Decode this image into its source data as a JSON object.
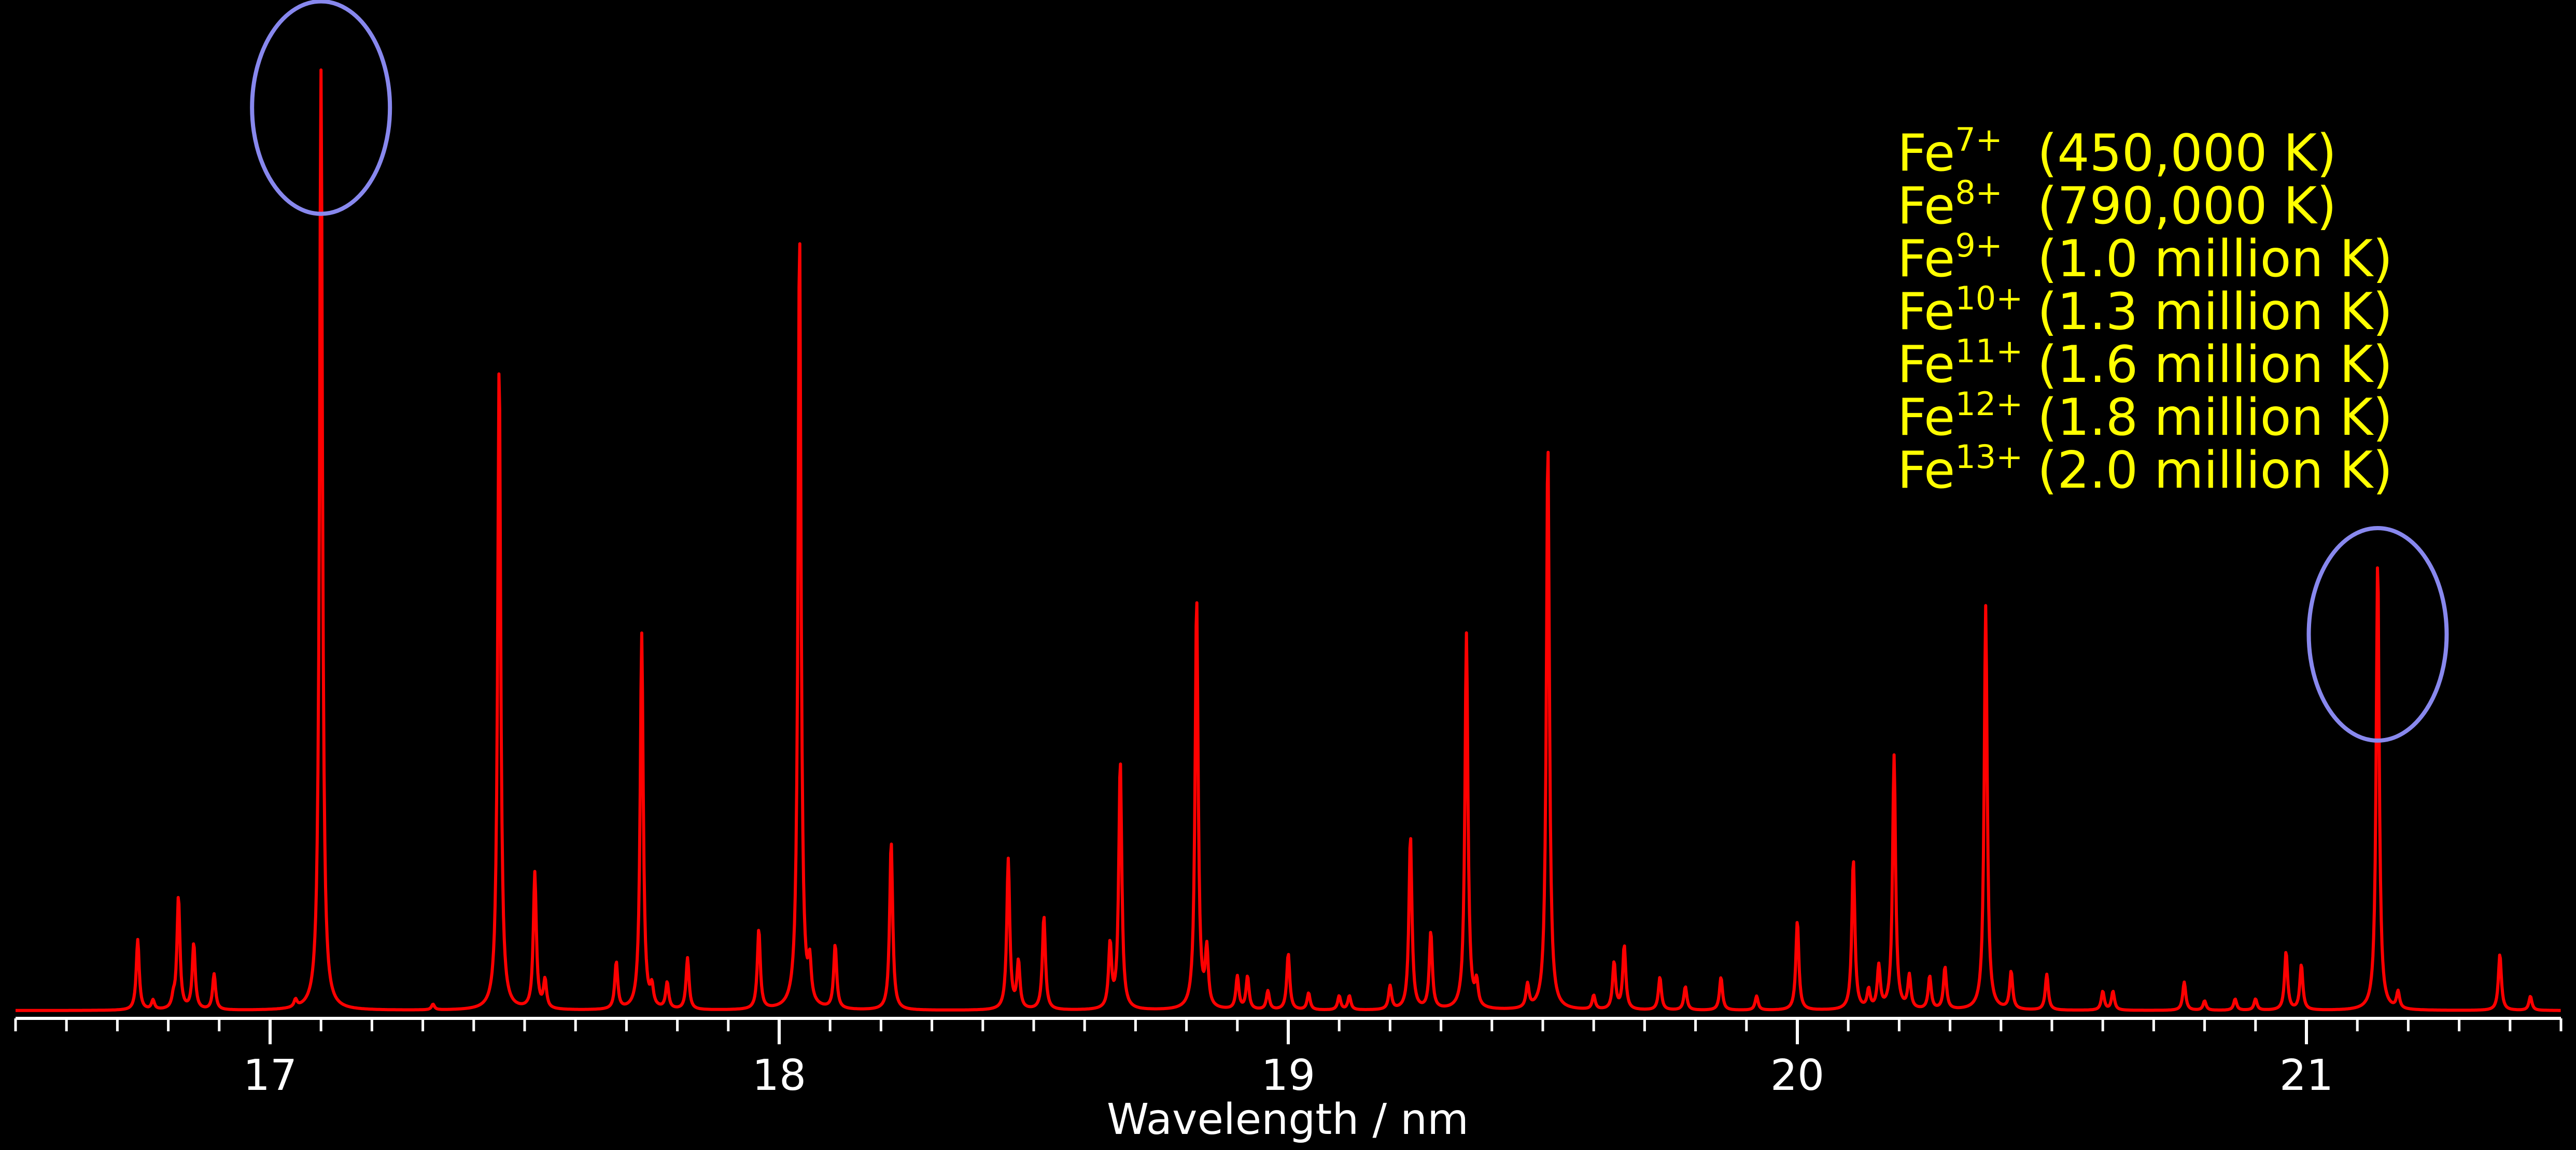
{
  "chart_data": {
    "type": "line",
    "xlabel": "Wavelength / nm",
    "ylabel": "",
    "xlim": [
      16.5,
      21.5
    ],
    "ylim": [
      0,
      100
    ],
    "xticks": [
      17,
      18,
      19,
      20,
      21
    ],
    "grid": false,
    "legend_position": "top-right",
    "colors": {
      "background": "#000000",
      "line": "#ff0000",
      "highlight": "#8888ee",
      "legend_text": "#ffff00",
      "axis": "#ffffff"
    },
    "peaks": [
      {
        "x": 16.74,
        "y": 7.5
      },
      {
        "x": 16.77,
        "y": 1.0
      },
      {
        "x": 16.81,
        "y": 1.0
      },
      {
        "x": 16.82,
        "y": 12.0
      },
      {
        "x": 16.85,
        "y": 7.0
      },
      {
        "x": 16.89,
        "y": 3.8
      },
      {
        "x": 17.05,
        "y": 0.8
      },
      {
        "x": 17.1,
        "y": 100
      },
      {
        "x": 17.32,
        "y": 0.6
      },
      {
        "x": 17.45,
        "y": 69
      },
      {
        "x": 17.52,
        "y": 14.5
      },
      {
        "x": 17.54,
        "y": 3.0
      },
      {
        "x": 17.68,
        "y": 5.0
      },
      {
        "x": 17.73,
        "y": 40
      },
      {
        "x": 17.75,
        "y": 2.0
      },
      {
        "x": 17.78,
        "y": 2.8
      },
      {
        "x": 17.82,
        "y": 5.5
      },
      {
        "x": 17.96,
        "y": 8.5
      },
      {
        "x": 18.04,
        "y": 83
      },
      {
        "x": 18.06,
        "y": 4.0
      },
      {
        "x": 18.11,
        "y": 6.8
      },
      {
        "x": 18.22,
        "y": 18
      },
      {
        "x": 18.45,
        "y": 16
      },
      {
        "x": 18.47,
        "y": 5.0
      },
      {
        "x": 18.52,
        "y": 10
      },
      {
        "x": 18.65,
        "y": 6.8
      },
      {
        "x": 18.67,
        "y": 26.5
      },
      {
        "x": 18.82,
        "y": 44
      },
      {
        "x": 18.84,
        "y": 6.0
      },
      {
        "x": 18.9,
        "y": 3.5
      },
      {
        "x": 18.92,
        "y": 3.5
      },
      {
        "x": 18.96,
        "y": 2.0
      },
      {
        "x": 19.0,
        "y": 6.0
      },
      {
        "x": 19.04,
        "y": 1.8
      },
      {
        "x": 19.1,
        "y": 1.5
      },
      {
        "x": 19.12,
        "y": 1.5
      },
      {
        "x": 19.2,
        "y": 2.5
      },
      {
        "x": 19.24,
        "y": 18.5
      },
      {
        "x": 19.28,
        "y": 8.2
      },
      {
        "x": 19.35,
        "y": 40
      },
      {
        "x": 19.37,
        "y": 2.5
      },
      {
        "x": 19.47,
        "y": 2.5
      },
      {
        "x": 19.51,
        "y": 60.5
      },
      {
        "x": 19.6,
        "y": 1.5
      },
      {
        "x": 19.64,
        "y": 5.0
      },
      {
        "x": 19.66,
        "y": 6.8
      },
      {
        "x": 19.73,
        "y": 3.5
      },
      {
        "x": 19.78,
        "y": 2.5
      },
      {
        "x": 19.85,
        "y": 3.5
      },
      {
        "x": 19.92,
        "y": 1.5
      },
      {
        "x": 20.0,
        "y": 9.5
      },
      {
        "x": 20.11,
        "y": 16
      },
      {
        "x": 20.14,
        "y": 2.0
      },
      {
        "x": 20.16,
        "y": 4.5
      },
      {
        "x": 20.19,
        "y": 27
      },
      {
        "x": 20.22,
        "y": 3.5
      },
      {
        "x": 20.26,
        "y": 3.5
      },
      {
        "x": 20.29,
        "y": 4.5
      },
      {
        "x": 20.37,
        "y": 43
      },
      {
        "x": 20.42,
        "y": 4.0
      },
      {
        "x": 20.49,
        "y": 3.8
      },
      {
        "x": 20.6,
        "y": 2.0
      },
      {
        "x": 20.62,
        "y": 2.0
      },
      {
        "x": 20.76,
        "y": 3.0
      },
      {
        "x": 20.8,
        "y": 1.0
      },
      {
        "x": 20.86,
        "y": 1.2
      },
      {
        "x": 20.9,
        "y": 1.2
      },
      {
        "x": 20.96,
        "y": 6.2
      },
      {
        "x": 20.99,
        "y": 4.8
      },
      {
        "x": 21.14,
        "y": 48
      },
      {
        "x": 21.18,
        "y": 1.8
      },
      {
        "x": 21.38,
        "y": 6.0
      },
      {
        "x": 21.44,
        "y": 1.5
      }
    ],
    "highlight_circles": [
      {
        "x": 17.1,
        "y": 96
      },
      {
        "x": 21.14,
        "y": 40
      }
    ],
    "legend": [
      {
        "ion": "Fe",
        "charge": "7+",
        "temperature": "(450,000 K)"
      },
      {
        "ion": "Fe",
        "charge": "8+",
        "temperature": "(790,000 K)"
      },
      {
        "ion": "Fe",
        "charge": "9+",
        "temperature": "(1.0 million K)"
      },
      {
        "ion": "Fe",
        "charge": "10+",
        "temperature": "(1.3 million K)"
      },
      {
        "ion": "Fe",
        "charge": "11+",
        "temperature": "(1.6 million K)"
      },
      {
        "ion": "Fe",
        "charge": "12+",
        "temperature": "(1.8 million K)"
      },
      {
        "ion": "Fe",
        "charge": "13+",
        "temperature": "(2.0 million K)"
      }
    ]
  }
}
